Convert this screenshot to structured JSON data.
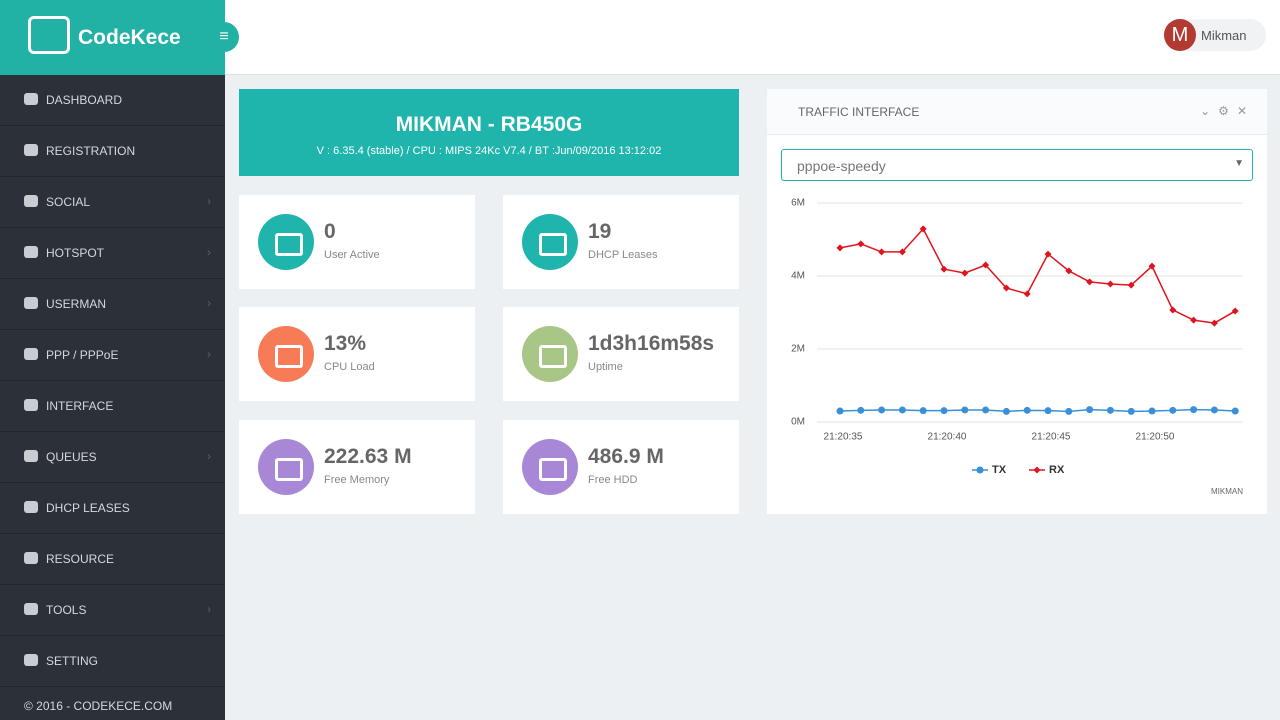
{
  "brand": "CodeKece",
  "menu": [
    "DASHBOARD",
    "REGISTRATION",
    "SOCIAL",
    "HOTSPOT",
    "USERMAN",
    "PPP / PPPoE",
    "INTERFACE",
    "QUEUES",
    "DHCP LEASES",
    "RESOURCE",
    "TOOLS",
    "SETTING"
  ],
  "footer": "© 2016 - CODEKECE.COM",
  "user": {
    "initial": "M",
    "name": "Mikman"
  },
  "banner": {
    "title": "MIKMAN - RB450G",
    "subtitle": "V : 6.35.4 (stable) / CPU : MIPS 24Kc V7.4 / BT :Jun/09/2016 13:12:02"
  },
  "stats": [
    {
      "value": "0",
      "label": "User Active"
    },
    {
      "value": "19",
      "label": "DHCP Leases"
    },
    {
      "value": "13%",
      "label": "CPU Load"
    },
    {
      "value": "1d3h16m58s",
      "label": "Uptime"
    },
    {
      "value": "222.63 M",
      "label": "Free Memory"
    },
    {
      "value": "486.9 M",
      "label": "Free HDD"
    }
  ],
  "panel": {
    "title": "TRAFFIC INTERFACE",
    "select": "pppoe-speedy",
    "credit": "MIKMAN"
  },
  "chart_data": {
    "type": "line",
    "categories": [
      "21:20:35",
      null,
      null,
      null,
      null,
      "21:20:40",
      null,
      null,
      null,
      null,
      "21:20:45",
      null,
      null,
      null,
      null,
      "21:20:50",
      null,
      null,
      null,
      null
    ],
    "series": [
      {
        "name": "TX",
        "color": "#3a8fd9",
        "values": [
          0.3,
          0.32,
          0.33,
          0.33,
          0.31,
          0.31,
          0.33,
          0.33,
          0.29,
          0.32,
          0.31,
          0.29,
          0.34,
          0.32,
          0.29,
          0.3,
          0.32,
          0.34,
          0.33,
          0.3
        ]
      },
      {
        "name": "RX",
        "color": "#e0141e",
        "values": [
          4.77,
          4.88,
          4.66,
          4.66,
          5.29,
          4.19,
          4.08,
          4.3,
          3.67,
          3.51,
          4.6,
          4.14,
          3.84,
          3.78,
          3.75,
          4.27,
          3.07,
          2.79,
          2.71,
          3.04
        ]
      }
    ],
    "ylim": [
      0,
      6
    ],
    "yticks": [
      {
        "value": 0,
        "label": "0M"
      },
      {
        "value": 2,
        "label": "2M"
      },
      {
        "value": 4,
        "label": "4M"
      },
      {
        "value": 6,
        "label": "6M"
      }
    ],
    "grid": true
  }
}
